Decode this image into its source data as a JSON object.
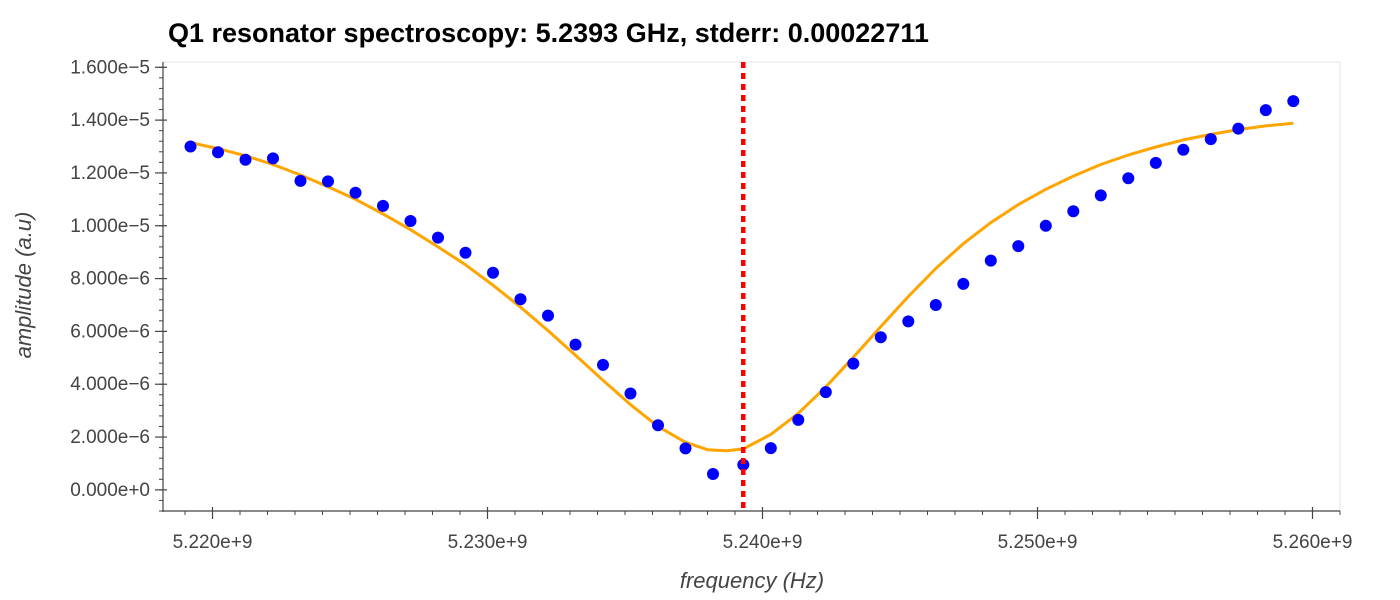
{
  "chart_data": {
    "type": "scatter",
    "title": "Q1 resonator spectroscopy: 5.2393 GHz, stderr: 0.00022711",
    "xlabel": "frequency (Hz)",
    "ylabel": "amplitude (a.u)",
    "xlim": [
      5218200000.0,
      5261000000.0
    ],
    "ylim": [
      -8e-07,
      1.62e-05
    ],
    "x_ticks": [
      5220000000.0,
      5230000000.0,
      5240000000.0,
      5250000000.0,
      5260000000.0
    ],
    "x_tick_labels": [
      "5.220e+9",
      "5.230e+9",
      "5.240e+9",
      "5.250e+9",
      "5.260e+9"
    ],
    "y_ticks": [
      0,
      2e-06,
      4e-06,
      6e-06,
      8e-06,
      1e-05,
      1.2e-05,
      1.4e-05,
      1.6e-05
    ],
    "y_tick_labels": [
      "0.000e+0",
      "2.000e−6",
      "4.000e−6",
      "6.000e−6",
      "8.000e−6",
      "1.000e−5",
      "1.200e−5",
      "1.400e−5",
      "1.600e−5"
    ],
    "grid": false,
    "series": [
      {
        "kind": "scatter",
        "color": "#0000ff",
        "x": [
          5219200000.0,
          5220200000.0,
          5221200000.0,
          5222200000.0,
          5223200000.0,
          5224200000.0,
          5225200000.0,
          5226200000.0,
          5227200000.0,
          5228200000.0,
          5229200000.0,
          5230200000.0,
          5231200000.0,
          5232200000.0,
          5233200000.0,
          5234200000.0,
          5235200000.0,
          5236200000.0,
          5237200000.0,
          5238200000.0,
          5239300000.0,
          5240300000.0,
          5241300000.0,
          5242300000.0,
          5243300000.0,
          5244300000.0,
          5245300000.0,
          5246300000.0,
          5247300000.0,
          5248300000.0,
          5249300000.0,
          5250300000.0,
          5251300000.0,
          5252300000.0,
          5253300000.0,
          5254300000.0,
          5255300000.0,
          5256300000.0,
          5257300000.0,
          5258300000.0,
          5259300000.0
        ],
        "y": [
          1.3e-05,
          1.278e-05,
          1.25e-05,
          1.255e-05,
          1.17e-05,
          1.168e-05,
          1.125e-05,
          1.075e-05,
          1.018e-05,
          9.55e-06,
          8.98e-06,
          8.22e-06,
          7.22e-06,
          6.6e-06,
          5.5e-06,
          4.73e-06,
          3.65e-06,
          2.45e-06,
          1.57e-06,
          6e-07,
          9.5e-07,
          1.58e-06,
          2.65e-06,
          3.7e-06,
          4.78e-06,
          5.78e-06,
          6.38e-06,
          7e-06,
          7.8e-06,
          8.68e-06,
          9.23e-06,
          1e-05,
          1.055e-05,
          1.115e-05,
          1.18e-05,
          1.238e-05,
          1.288e-05,
          1.328e-05,
          1.368e-05,
          1.438e-05,
          1.472e-05
        ]
      },
      {
        "kind": "line",
        "color": "#ffa500",
        "x": [
          5219200000.0,
          5220200000.0,
          5221200000.0,
          5222200000.0,
          5223200000.0,
          5224200000.0,
          5225200000.0,
          5226200000.0,
          5227200000.0,
          5228200000.0,
          5229200000.0,
          5230200000.0,
          5231200000.0,
          5232200000.0,
          5233200000.0,
          5234200000.0,
          5235200000.0,
          5236200000.0,
          5237200000.0,
          5238000000.0,
          5238700000.0,
          5239300000.0,
          5240300000.0,
          5241300000.0,
          5242300000.0,
          5243300000.0,
          5244300000.0,
          5245300000.0,
          5246300000.0,
          5247300000.0,
          5248300000.0,
          5249300000.0,
          5250300000.0,
          5251300000.0,
          5252300000.0,
          5253300000.0,
          5254300000.0,
          5255300000.0,
          5256300000.0,
          5257300000.0,
          5258300000.0,
          5259300000.0
        ],
        "y": [
          1.315e-05,
          1.292e-05,
          1.265e-05,
          1.232e-05,
          1.192e-05,
          1.148e-05,
          1.1e-05,
          1.045e-05,
          9.85e-06,
          9.2e-06,
          8.52e-06,
          7.75e-06,
          6.92e-06,
          6.03e-06,
          5.1e-06,
          4.15e-06,
          3.23e-06,
          2.4e-06,
          1.8e-06,
          1.52e-06,
          1.48e-06,
          1.55e-06,
          2.1e-06,
          2.9e-06,
          3.9e-06,
          5.02e-06,
          6.18e-06,
          7.32e-06,
          8.38e-06,
          9.32e-06,
          1.012e-05,
          1.08e-05,
          1.138e-05,
          1.188e-05,
          1.232e-05,
          1.268e-05,
          1.298e-05,
          1.325e-05,
          1.346e-05,
          1.364e-05,
          1.378e-05,
          1.388e-05
        ]
      },
      {
        "kind": "vline",
        "color": "#ff0000",
        "x": 5239300000.0
      }
    ]
  }
}
